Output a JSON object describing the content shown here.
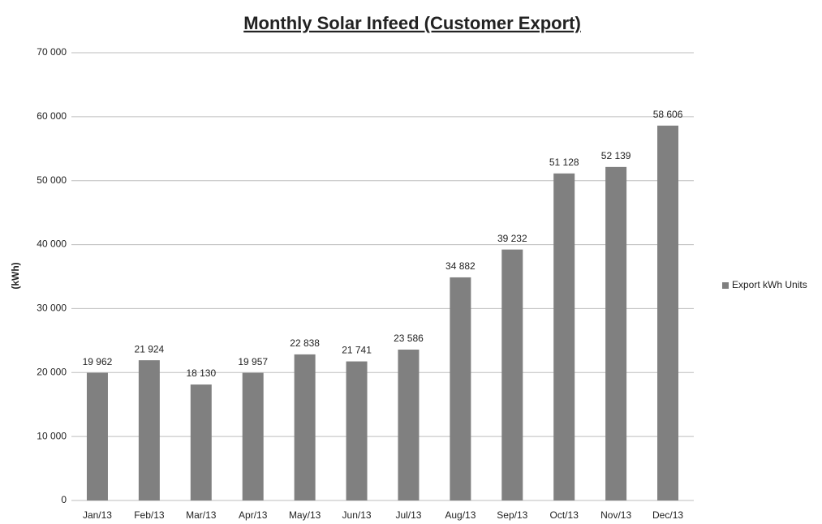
{
  "chart_data": {
    "type": "bar",
    "title": "Monthly Solar Infeed (Customer Export)",
    "y_label": "(kWh)",
    "categories": [
      "Jan/13",
      "Feb/13",
      "Mar/13",
      "Apr/13",
      "May/13",
      "Jun/13",
      "Jul/13",
      "Aug/13",
      "Sep/13",
      "Oct/13",
      "Nov/13",
      "Dec/13"
    ],
    "series": [
      {
        "name": "Export kWh Units",
        "color": "#808080",
        "values": [
          19962,
          21924,
          18130,
          19957,
          22838,
          21741,
          23586,
          34882,
          39232,
          51128,
          52139,
          58606
        ],
        "value_labels": [
          "19 962",
          "21 924",
          "18 130",
          "19 957",
          "22 838",
          "21 741",
          "23 586",
          "34 882",
          "39 232",
          "51 128",
          "52 139",
          "58 606"
        ]
      }
    ],
    "ylim": [
      0,
      70000
    ],
    "yticks": [
      {
        "value": 0,
        "label": "0"
      },
      {
        "value": 10000,
        "label": "10 000"
      },
      {
        "value": 20000,
        "label": "20 000"
      },
      {
        "value": 30000,
        "label": "30 000"
      },
      {
        "value": 40000,
        "label": "40 000"
      },
      {
        "value": 50000,
        "label": "50 000"
      },
      {
        "value": 60000,
        "label": "60 000"
      },
      {
        "value": 70000,
        "label": "70 000"
      }
    ],
    "grid": true,
    "legend": "right"
  }
}
